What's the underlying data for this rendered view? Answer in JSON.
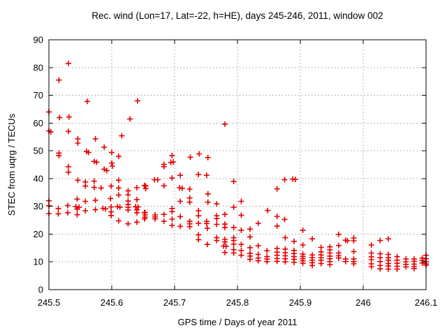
{
  "chart_data": {
    "type": "scatter",
    "title": "Rec. wind (Lon=17, Lat=-22, h=HE), days 245-246, 2011, window 002",
    "xlabel": "GPS time / Days of year 2011",
    "ylabel": "STEC from uqrg / TECUs",
    "xlim": [
      245.5,
      246.1
    ],
    "ylim": [
      0,
      90
    ],
    "xticks": {
      "values": [
        245.5,
        245.6,
        245.7,
        245.8,
        245.9,
        246.0,
        246.1
      ],
      "labels": [
        "245.5",
        "245.6",
        "245.7",
        "245.8",
        "245.9",
        "246",
        "246.1"
      ]
    },
    "yticks": {
      "values": [
        0,
        10,
        20,
        30,
        40,
        50,
        60,
        70,
        80,
        90
      ],
      "labels": [
        "0",
        "10",
        "20",
        "30",
        "40",
        "50",
        "60",
        "70",
        "80",
        "90"
      ]
    },
    "grid": true,
    "legend_position": "none",
    "marker": {
      "shape": "plus",
      "color": "#e60000",
      "size": 9
    },
    "axis_color": "#000000",
    "grid_color": "#9e9e9e",
    "background": "#ffffff",
    "series": [
      {
        "points": [
          [
            245.5,
            64.0
          ],
          [
            245.5,
            57.2
          ],
          [
            245.503,
            56.8
          ],
          [
            245.516,
            75.5
          ],
          [
            245.531,
            81.5
          ],
          [
            245.517,
            62.0
          ],
          [
            245.532,
            62.2
          ],
          [
            245.561,
            67.8
          ],
          [
            245.641,
            68.0
          ],
          [
            245.629,
            61.5
          ],
          [
            245.616,
            55.4
          ],
          [
            245.531,
            57.0
          ],
          [
            245.546,
            54.3
          ],
          [
            245.546,
            52.8
          ],
          [
            245.574,
            54.3
          ],
          [
            245.588,
            51.3
          ],
          [
            245.56,
            49.8
          ],
          [
            245.563,
            49.4
          ],
          [
            245.516,
            49.2
          ],
          [
            245.516,
            48.3
          ],
          [
            245.6,
            49.4
          ],
          [
            245.611,
            48.0
          ],
          [
            245.572,
            46.2
          ],
          [
            245.576,
            45.9
          ],
          [
            245.6,
            45.6
          ],
          [
            245.531,
            44.3
          ],
          [
            245.78,
            59.6
          ],
          [
            245.696,
            48.3
          ],
          [
            245.698,
            46.0
          ],
          [
            245.694,
            45.8
          ],
          [
            245.683,
            45.1
          ],
          [
            245.725,
            47.7
          ],
          [
            245.739,
            48.9
          ],
          [
            245.753,
            47.6
          ],
          [
            245.683,
            44.3
          ],
          [
            245.531,
            42.3
          ],
          [
            245.588,
            43.4
          ],
          [
            245.592,
            42.9
          ],
          [
            245.601,
            44.5
          ],
          [
            245.546,
            39.4
          ],
          [
            245.558,
            38.8
          ],
          [
            245.572,
            39.1
          ],
          [
            245.611,
            39.4
          ],
          [
            245.558,
            37.3
          ],
          [
            245.572,
            36.8
          ],
          [
            245.583,
            36.6
          ],
          [
            245.599,
            37.3
          ],
          [
            245.611,
            36.6
          ],
          [
            245.626,
            35.6
          ],
          [
            245.626,
            34.2
          ],
          [
            245.64,
            36.7
          ],
          [
            245.652,
            37.5
          ],
          [
            245.545,
            32.6
          ],
          [
            245.558,
            31.8
          ],
          [
            245.574,
            32.2
          ],
          [
            245.598,
            32.8
          ],
          [
            245.611,
            34.1
          ],
          [
            245.626,
            31.9
          ],
          [
            245.64,
            32.4
          ],
          [
            245.5,
            32.0
          ],
          [
            245.5,
            30.2
          ],
          [
            245.515,
            29.2
          ],
          [
            245.53,
            30.3
          ],
          [
            245.543,
            29.9
          ],
          [
            245.548,
            29.7
          ],
          [
            245.545,
            29.0
          ],
          [
            245.558,
            28.4
          ],
          [
            245.574,
            28.8
          ],
          [
            245.586,
            29.3
          ],
          [
            245.59,
            29.1
          ],
          [
            245.599,
            29.8
          ],
          [
            245.599,
            28.0
          ],
          [
            245.609,
            29.9
          ],
          [
            245.613,
            29.7
          ],
          [
            245.626,
            30.7
          ],
          [
            245.626,
            29.7
          ],
          [
            245.626,
            28.7
          ],
          [
            245.638,
            29.9
          ],
          [
            245.642,
            29.8
          ],
          [
            245.64,
            28.7
          ],
          [
            245.64,
            27.7
          ],
          [
            245.652,
            27.7
          ],
          [
            245.5,
            27.4
          ],
          [
            245.515,
            27.3
          ],
          [
            245.53,
            27.7
          ],
          [
            245.545,
            27.0
          ],
          [
            245.599,
            26.7
          ],
          [
            245.611,
            24.8
          ],
          [
            245.626,
            23.7
          ],
          [
            245.64,
            24.3
          ],
          [
            245.652,
            25.5
          ],
          [
            245.668,
            39.6
          ],
          [
            245.673,
            39.6
          ],
          [
            245.696,
            40.2
          ],
          [
            245.709,
            41.2
          ],
          [
            245.738,
            41.5
          ],
          [
            245.751,
            41.2
          ],
          [
            245.794,
            39.0
          ],
          [
            245.654,
            37.3
          ],
          [
            245.654,
            36.4
          ],
          [
            245.683,
            37.4
          ],
          [
            245.708,
            36.7
          ],
          [
            245.712,
            36.5
          ],
          [
            245.724,
            36.2
          ],
          [
            245.753,
            34.5
          ],
          [
            245.724,
            33.0
          ],
          [
            245.709,
            31.8
          ],
          [
            245.724,
            31.5
          ],
          [
            245.753,
            31.5
          ],
          [
            245.767,
            30.9
          ],
          [
            245.794,
            29.7
          ],
          [
            245.806,
            31.8
          ],
          [
            245.696,
            29.2
          ],
          [
            245.696,
            28.1
          ],
          [
            245.653,
            27.8
          ],
          [
            245.653,
            26.9
          ],
          [
            245.653,
            26.1
          ],
          [
            245.669,
            26.9
          ],
          [
            245.669,
            26.2
          ],
          [
            245.669,
            25.5
          ],
          [
            245.683,
            27.1
          ],
          [
            245.683,
            24.6
          ],
          [
            245.696,
            25.4
          ],
          [
            245.696,
            23.1
          ],
          [
            245.709,
            26.3
          ],
          [
            245.709,
            22.8
          ],
          [
            245.724,
            24.6
          ],
          [
            245.724,
            23.7
          ],
          [
            245.724,
            22.7
          ],
          [
            245.738,
            28.4
          ],
          [
            245.738,
            26.6
          ],
          [
            245.738,
            23.9
          ],
          [
            245.751,
            24.6
          ],
          [
            245.751,
            23.8
          ],
          [
            245.752,
            22.1
          ],
          [
            245.767,
            26.6
          ],
          [
            245.767,
            25.6
          ],
          [
            245.767,
            23.5
          ],
          [
            245.78,
            27.1
          ],
          [
            245.78,
            23.6
          ],
          [
            245.78,
            22.4
          ],
          [
            245.794,
            22.4
          ],
          [
            245.806,
            26.8
          ],
          [
            245.738,
            19.7
          ],
          [
            245.738,
            18.0
          ],
          [
            245.752,
            16.3
          ],
          [
            245.767,
            18.7
          ],
          [
            245.767,
            17.7
          ],
          [
            245.78,
            18.1
          ],
          [
            245.78,
            17.2
          ],
          [
            245.794,
            18.7
          ],
          [
            245.794,
            17.7
          ],
          [
            245.794,
            16.4
          ],
          [
            245.778,
            15.7
          ],
          [
            245.782,
            15.6
          ],
          [
            245.78,
            13.4
          ],
          [
            245.794,
            14.4
          ],
          [
            245.794,
            13.2
          ],
          [
            245.875,
            39.6
          ],
          [
            245.888,
            39.8
          ],
          [
            245.892,
            39.7
          ],
          [
            245.863,
            36.3
          ],
          [
            245.848,
            28.5
          ],
          [
            245.863,
            26.4
          ],
          [
            245.875,
            25.3
          ],
          [
            245.833,
            23.9
          ],
          [
            245.82,
            21.8
          ],
          [
            245.863,
            22.9
          ],
          [
            245.876,
            18.7
          ],
          [
            245.806,
            21.4
          ],
          [
            245.82,
            19.0
          ],
          [
            245.904,
            21.4
          ],
          [
            245.89,
            17.4
          ],
          [
            245.919,
            18.3
          ],
          [
            245.904,
            16.1
          ],
          [
            245.806,
            16.3
          ],
          [
            245.806,
            14.1
          ],
          [
            245.806,
            12.4
          ],
          [
            245.82,
            15.1
          ],
          [
            245.82,
            13.1
          ],
          [
            245.82,
            12.1
          ],
          [
            245.82,
            10.9
          ],
          [
            245.833,
            15.8
          ],
          [
            245.833,
            12.7
          ],
          [
            245.833,
            11.4
          ],
          [
            245.833,
            10.4
          ],
          [
            245.847,
            14.0
          ],
          [
            245.847,
            11.9
          ],
          [
            245.847,
            11.0
          ],
          [
            245.847,
            10.1
          ],
          [
            245.863,
            14.8
          ],
          [
            245.863,
            13.5
          ],
          [
            245.863,
            12.4
          ],
          [
            245.863,
            11.2
          ],
          [
            245.863,
            10.2
          ],
          [
            245.876,
            14.6
          ],
          [
            245.876,
            13.3
          ],
          [
            245.876,
            12.2
          ],
          [
            245.876,
            11.1
          ],
          [
            245.876,
            10.0
          ],
          [
            245.89,
            14.1
          ],
          [
            245.89,
            13.0
          ],
          [
            245.89,
            11.9
          ],
          [
            245.89,
            10.9
          ],
          [
            245.89,
            9.8
          ],
          [
            245.904,
            12.8
          ],
          [
            245.904,
            12.0
          ],
          [
            245.904,
            11.2
          ],
          [
            245.904,
            10.4
          ],
          [
            245.904,
            9.5
          ],
          [
            245.919,
            12.5
          ],
          [
            245.919,
            11.5
          ],
          [
            245.919,
            10.6
          ],
          [
            245.919,
            9.7
          ],
          [
            245.919,
            8.7
          ],
          [
            245.933,
            15.2
          ],
          [
            245.933,
            13.6
          ],
          [
            245.933,
            12.5
          ],
          [
            245.933,
            11.5
          ],
          [
            245.933,
            10.6
          ],
          [
            245.933,
            9.4
          ],
          [
            245.947,
            15.4
          ],
          [
            245.947,
            14.3
          ],
          [
            245.947,
            13.2
          ],
          [
            245.947,
            12.1
          ],
          [
            245.947,
            11.1
          ],
          [
            245.947,
            10.1
          ],
          [
            245.947,
            9.0
          ],
          [
            245.961,
            19.9
          ],
          [
            245.961,
            15.9
          ],
          [
            245.961,
            13.2
          ],
          [
            245.961,
            12.2
          ],
          [
            245.961,
            11.4
          ],
          [
            245.972,
            17.8
          ],
          [
            245.975,
            17.6
          ],
          [
            245.985,
            18.6
          ],
          [
            245.985,
            17.6
          ],
          [
            246.013,
            16.1
          ],
          [
            246.027,
            17.7
          ],
          [
            246.04,
            18.3
          ],
          [
            245.972,
            11.0
          ],
          [
            245.972,
            10.1
          ],
          [
            245.985,
            13.7
          ],
          [
            245.985,
            11.0
          ],
          [
            245.985,
            10.1
          ],
          [
            245.985,
            9.3
          ],
          [
            246.013,
            13.2
          ],
          [
            246.013,
            11.8
          ],
          [
            246.013,
            10.8
          ],
          [
            246.013,
            9.3
          ],
          [
            246.013,
            8.3
          ],
          [
            246.027,
            12.9
          ],
          [
            246.027,
            11.5
          ],
          [
            246.027,
            10.1
          ],
          [
            246.027,
            8.7
          ],
          [
            246.027,
            7.5
          ],
          [
            246.04,
            12.7
          ],
          [
            246.04,
            11.5
          ],
          [
            246.04,
            10.6
          ],
          [
            246.04,
            9.4
          ],
          [
            246.04,
            8.5
          ],
          [
            246.04,
            7.4
          ],
          [
            246.054,
            11.9
          ],
          [
            246.054,
            10.6
          ],
          [
            246.054,
            9.5
          ],
          [
            246.054,
            8.4
          ],
          [
            246.054,
            7.4
          ],
          [
            246.068,
            11.0
          ],
          [
            246.068,
            10.0
          ],
          [
            246.068,
            9.1
          ],
          [
            246.068,
            8.2
          ],
          [
            246.081,
            11.0
          ],
          [
            246.081,
            10.2
          ],
          [
            246.081,
            9.2
          ],
          [
            246.081,
            8.3
          ],
          [
            246.081,
            7.6
          ],
          [
            246.094,
            11.4
          ],
          [
            246.094,
            10.5
          ],
          [
            246.094,
            9.6
          ],
          [
            246.1,
            12.4
          ],
          [
            246.1,
            11.1
          ],
          [
            246.1,
            10.0
          ],
          [
            246.1,
            9.3
          ],
          [
            246.1,
            8.8
          ]
        ]
      }
    ]
  }
}
